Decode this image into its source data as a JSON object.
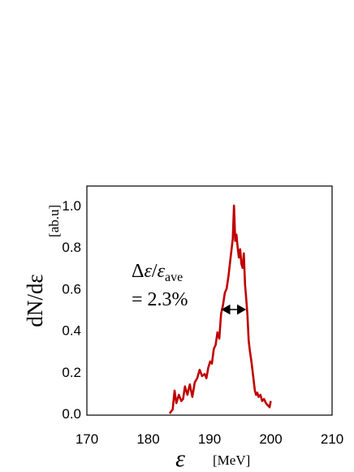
{
  "chart_data": {
    "type": "line",
    "title": "",
    "xlabel": {
      "symbol": "ε",
      "unit": "[MeV]"
    },
    "ylabel": {
      "text": "dN/dε",
      "unit": "[ab.u]"
    },
    "xlim": [
      170,
      210
    ],
    "ylim": [
      0.0,
      1.1
    ],
    "x_ticks": [
      "170",
      "180",
      "190",
      "200",
      "210"
    ],
    "y_ticks": [
      "0.0",
      "0.2",
      "0.4",
      "0.6",
      "0.8",
      "1.0"
    ],
    "grid": false,
    "legend": "none",
    "series_color": "#c00000",
    "series": [
      {
        "x": [
          183.5,
          184.0,
          184.3,
          184.6,
          185.0,
          185.4,
          185.7,
          186.0,
          186.4,
          186.8,
          187.2,
          187.6,
          188.0,
          188.4,
          188.8,
          189.2,
          189.5,
          189.8,
          190.1,
          190.4,
          190.7,
          191.0,
          191.3,
          191.6,
          191.9,
          192.2,
          192.5,
          192.8,
          193.1,
          193.4,
          193.6,
          193.8,
          194.0,
          194.2,
          194.4,
          194.6,
          194.8,
          195.0,
          195.2,
          195.4,
          195.6,
          195.8,
          196.0,
          196.2,
          196.4,
          196.6,
          196.8,
          197.0,
          197.2,
          197.4,
          197.6,
          197.8,
          198.0,
          198.3,
          198.6,
          198.9,
          199.2,
          199.5,
          199.8,
          200.0
        ],
        "y": [
          0.0,
          0.02,
          0.11,
          0.05,
          0.09,
          0.06,
          0.07,
          0.13,
          0.09,
          0.14,
          0.08,
          0.15,
          0.17,
          0.21,
          0.18,
          0.19,
          0.17,
          0.22,
          0.25,
          0.24,
          0.31,
          0.33,
          0.39,
          0.36,
          0.48,
          0.52,
          0.58,
          0.6,
          0.66,
          0.74,
          0.79,
          0.84,
          1.0,
          0.83,
          0.86,
          0.8,
          0.75,
          0.79,
          0.72,
          0.7,
          0.77,
          0.62,
          0.55,
          0.47,
          0.35,
          0.3,
          0.26,
          0.21,
          0.16,
          0.11,
          0.09,
          0.1,
          0.08,
          0.09,
          0.06,
          0.07,
          0.05,
          0.04,
          0.03,
          0.06
        ]
      }
    ],
    "annotation": {
      "line1": {
        "delta": "Δ",
        "eps": "ε",
        "slash": "/",
        "eps2": "ε",
        "sub": "ave"
      },
      "line2": "= 2.3%",
      "arrow_from": 191.6,
      "arrow_to": 196.3,
      "arrow_y": 0.5
    }
  }
}
